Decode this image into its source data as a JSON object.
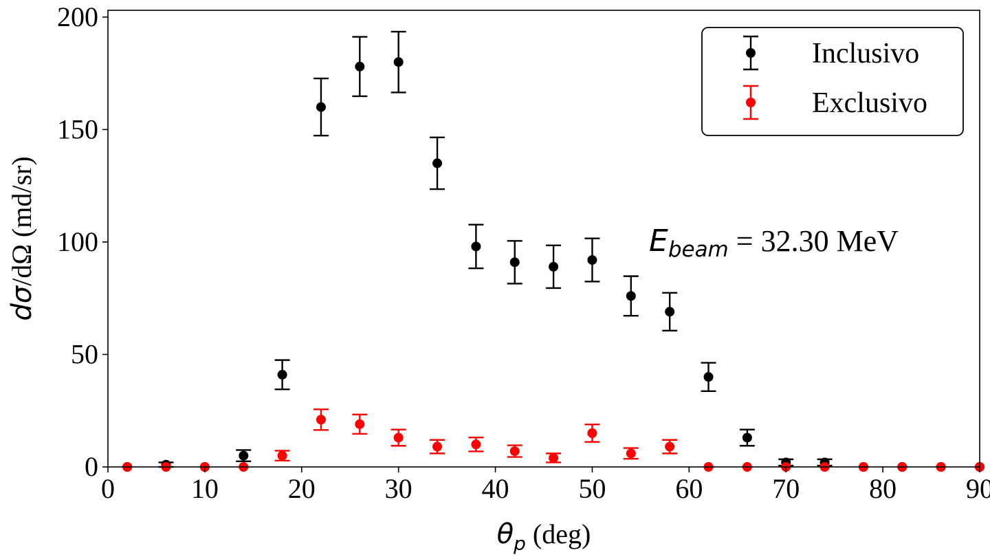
{
  "chart_data": {
    "type": "scatter",
    "xlabel_symbol": "θ",
    "xlabel_sub": "p",
    "xlabel_unit": "(deg)",
    "ylabel_italic": "dσ",
    "ylabel_rest": "/dΩ (md/sr)",
    "xlim": [
      0,
      90
    ],
    "ylim": [
      0,
      203
    ],
    "xticks": [
      0,
      10,
      20,
      30,
      40,
      50,
      60,
      70,
      80,
      90
    ],
    "yticks": [
      0,
      50,
      100,
      150,
      200
    ],
    "grid": false,
    "legend_position": "top-right",
    "annotation": {
      "symbol": "E",
      "sub": "beam",
      "text": " = 32.30 MeV"
    },
    "series": [
      {
        "name": "Inclusivo",
        "color": "#000000",
        "points": [
          {
            "x": 2,
            "y": 0,
            "err": 0
          },
          {
            "x": 6,
            "y": 1,
            "err": 1
          },
          {
            "x": 10,
            "y": 0,
            "err": 0
          },
          {
            "x": 14,
            "y": 5,
            "err": 2.5
          },
          {
            "x": 18,
            "y": 41,
            "err": 6.5
          },
          {
            "x": 22,
            "y": 160,
            "err": 12.7
          },
          {
            "x": 26,
            "y": 178,
            "err": 13.2
          },
          {
            "x": 30,
            "y": 180,
            "err": 13.5
          },
          {
            "x": 34,
            "y": 135,
            "err": 11.5
          },
          {
            "x": 38,
            "y": 98,
            "err": 9.7
          },
          {
            "x": 42,
            "y": 91,
            "err": 9.5
          },
          {
            "x": 46,
            "y": 89,
            "err": 9.5
          },
          {
            "x": 50,
            "y": 92,
            "err": 9.6
          },
          {
            "x": 54,
            "y": 76,
            "err": 8.8
          },
          {
            "x": 58,
            "y": 69,
            "err": 8.4
          },
          {
            "x": 62,
            "y": 40,
            "err": 6.3
          },
          {
            "x": 66,
            "y": 13,
            "err": 3.6
          },
          {
            "x": 70,
            "y": 2,
            "err": 1.4
          },
          {
            "x": 74,
            "y": 2,
            "err": 1.4
          },
          {
            "x": 78,
            "y": 0,
            "err": 0
          },
          {
            "x": 82,
            "y": 0,
            "err": 0
          },
          {
            "x": 86,
            "y": 0,
            "err": 0
          },
          {
            "x": 90,
            "y": 0,
            "err": 0
          }
        ]
      },
      {
        "name": "Exclusivo",
        "color": "#ff0000",
        "points": [
          {
            "x": 2,
            "y": 0,
            "err": 0
          },
          {
            "x": 6,
            "y": 0,
            "err": 0
          },
          {
            "x": 10,
            "y": 0,
            "err": 0
          },
          {
            "x": 14,
            "y": 0,
            "err": 0
          },
          {
            "x": 18,
            "y": 5,
            "err": 2.2
          },
          {
            "x": 22,
            "y": 21,
            "err": 4.6
          },
          {
            "x": 26,
            "y": 19,
            "err": 4.3
          },
          {
            "x": 30,
            "y": 13,
            "err": 3.6
          },
          {
            "x": 34,
            "y": 9,
            "err": 3.0
          },
          {
            "x": 38,
            "y": 10,
            "err": 3.1
          },
          {
            "x": 42,
            "y": 7,
            "err": 2.6
          },
          {
            "x": 46,
            "y": 4,
            "err": 2.0
          },
          {
            "x": 50,
            "y": 15,
            "err": 3.9
          },
          {
            "x": 54,
            "y": 6,
            "err": 2.4
          },
          {
            "x": 58,
            "y": 9,
            "err": 3.0
          },
          {
            "x": 62,
            "y": 0,
            "err": 0
          },
          {
            "x": 66,
            "y": 0,
            "err": 0
          },
          {
            "x": 70,
            "y": 0,
            "err": 0
          },
          {
            "x": 74,
            "y": 0,
            "err": 0
          },
          {
            "x": 78,
            "y": 0,
            "err": 0
          },
          {
            "x": 82,
            "y": 0,
            "err": 0
          },
          {
            "x": 86,
            "y": 0,
            "err": 0
          },
          {
            "x": 90,
            "y": 0,
            "err": 0
          }
        ]
      }
    ]
  }
}
